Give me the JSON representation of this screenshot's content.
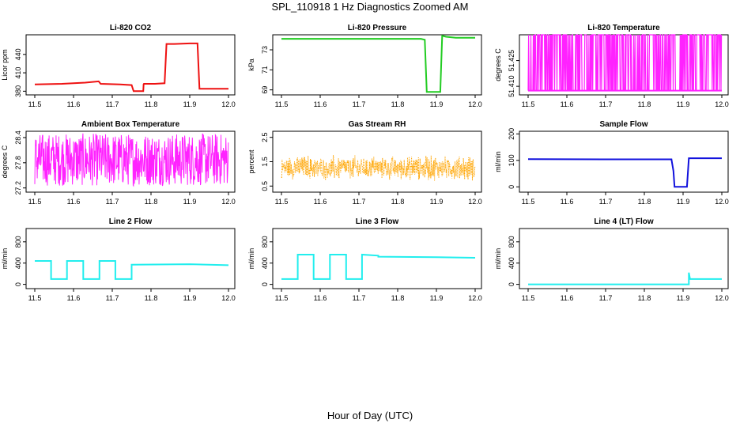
{
  "title": "SPL_110918  1 Hz Diagnostics Zoomed AM",
  "xlabel": "Hour of Day (UTC)",
  "colors": {
    "red": "#ee1111",
    "green": "#22cc22",
    "magenta": "#ff22ff",
    "orange": "#ffa500",
    "blue": "#1111dd",
    "cyan": "#22eeee",
    "axis": "#000000"
  },
  "x_ticks": [
    "11.5",
    "11.6",
    "11.7",
    "11.8",
    "11.9",
    "12.0"
  ],
  "chart_data": [
    {
      "type": "line",
      "title": "Li-820 CO2",
      "ylabel": "Licor ppm",
      "ylim": [
        374,
        472
      ],
      "yticks": [
        "380",
        "410",
        "440"
      ],
      "color": "red",
      "series": [
        {
          "name": "CO2",
          "x": [
            11.5,
            11.57,
            11.6,
            11.63,
            11.665,
            11.67,
            11.72,
            11.75,
            11.755,
            11.78,
            11.781,
            11.78,
            11.81,
            11.835,
            11.84,
            11.86,
            11.9,
            11.92,
            11.925,
            12.0
          ],
          "y": [
            391,
            392,
            393,
            394,
            396,
            392,
            391,
            390,
            380,
            380,
            392,
            392,
            392,
            393,
            457,
            457,
            458,
            458,
            384,
            384
          ]
        }
      ]
    },
    {
      "type": "line",
      "title": "Li-820 Pressure",
      "ylabel": "kPa",
      "ylim": [
        68.5,
        74.5
      ],
      "yticks": [
        "69",
        "71",
        "73"
      ],
      "color": "green",
      "series": [
        {
          "name": "Pressure",
          "x": [
            11.5,
            11.86,
            11.87,
            11.875,
            11.91,
            11.915,
            11.925,
            11.95,
            12.0
          ],
          "y": [
            74.1,
            74.1,
            74.0,
            68.8,
            68.8,
            74.4,
            74.3,
            74.2,
            74.2
          ]
        }
      ]
    },
    {
      "type": "line",
      "title": "Li-820 Temperature",
      "ylabel": "degrees C",
      "ylim": [
        51.405,
        51.44
      ],
      "yticks": [
        "51.410",
        "51.425"
      ],
      "color": "magenta",
      "series": [
        {
          "name": "Temperature",
          "low": 51.4075,
          "high": 51.44,
          "x_range": [
            11.5,
            12.0
          ]
        }
      ]
    },
    {
      "type": "line",
      "title": "Ambient Box Temperature",
      "ylabel": "degrees C",
      "ylim": [
        27.1,
        28.55
      ],
      "yticks": [
        "27.2",
        "27.8",
        "28.4"
      ],
      "color": "magenta",
      "series": [
        {
          "name": "Box Temp",
          "low": 27.25,
          "high": 28.5,
          "center": 27.8,
          "x_range": [
            11.5,
            12.0
          ]
        }
      ]
    },
    {
      "type": "scatter",
      "title": "Gas Stream RH",
      "ylabel": "percent",
      "ylim": [
        0.25,
        2.75
      ],
      "yticks": [
        "0.5",
        "1.5",
        "2.5"
      ],
      "color": "orange",
      "series": [
        {
          "name": "RH",
          "low": 0.85,
          "high": 1.65,
          "center": 1.25,
          "x_range": [
            11.5,
            12.0
          ]
        }
      ]
    },
    {
      "type": "line",
      "title": "Sample Flow",
      "ylabel": "ml/min",
      "ylim": [
        -20,
        210
      ],
      "yticks": [
        "0",
        "100",
        "200"
      ],
      "color": "blue",
      "series": [
        {
          "name": "Sample Flow",
          "x": [
            11.5,
            11.7,
            11.87,
            11.875,
            11.878,
            11.91,
            11.915,
            12.0
          ],
          "y": [
            105,
            104,
            104,
            60,
            0,
            0,
            108,
            108
          ]
        }
      ]
    },
    {
      "type": "line",
      "title": "Line 2 Flow",
      "ylabel": "ml/min",
      "ylim": [
        -80,
        1050
      ],
      "yticks": [
        "0",
        "400",
        "800"
      ],
      "color": "cyan",
      "series": [
        {
          "name": "Line 2",
          "x": [
            11.5,
            11.542,
            11.542,
            11.583,
            11.583,
            11.625,
            11.625,
            11.667,
            11.667,
            11.708,
            11.708,
            11.75,
            11.75,
            11.9,
            12.0
          ],
          "y": [
            440,
            440,
            100,
            100,
            440,
            440,
            100,
            100,
            440,
            440,
            100,
            100,
            370,
            380,
            360
          ]
        }
      ]
    },
    {
      "type": "line",
      "title": "Line 3 Flow",
      "ylabel": "ml/min",
      "ylim": [
        -80,
        1050
      ],
      "yticks": [
        "0",
        "400",
        "800"
      ],
      "color": "cyan",
      "series": [
        {
          "name": "Line 3",
          "x": [
            11.5,
            11.542,
            11.542,
            11.583,
            11.583,
            11.625,
            11.625,
            11.667,
            11.667,
            11.708,
            11.708,
            11.75,
            11.75,
            11.9,
            12.0
          ],
          "y": [
            100,
            100,
            560,
            560,
            100,
            100,
            560,
            560,
            100,
            100,
            560,
            540,
            520,
            510,
            500
          ]
        }
      ]
    },
    {
      "type": "line",
      "title": "Line 4 (LT) Flow",
      "ylabel": "ml/min",
      "ylim": [
        -80,
        1050
      ],
      "yticks": [
        "0",
        "400",
        "800"
      ],
      "color": "cyan",
      "series": [
        {
          "name": "Line 4",
          "x": [
            11.5,
            11.915,
            11.915,
            11.918,
            11.922,
            12.0
          ],
          "y": [
            0,
            0,
            220,
            100,
            100,
            100
          ]
        }
      ]
    }
  ]
}
